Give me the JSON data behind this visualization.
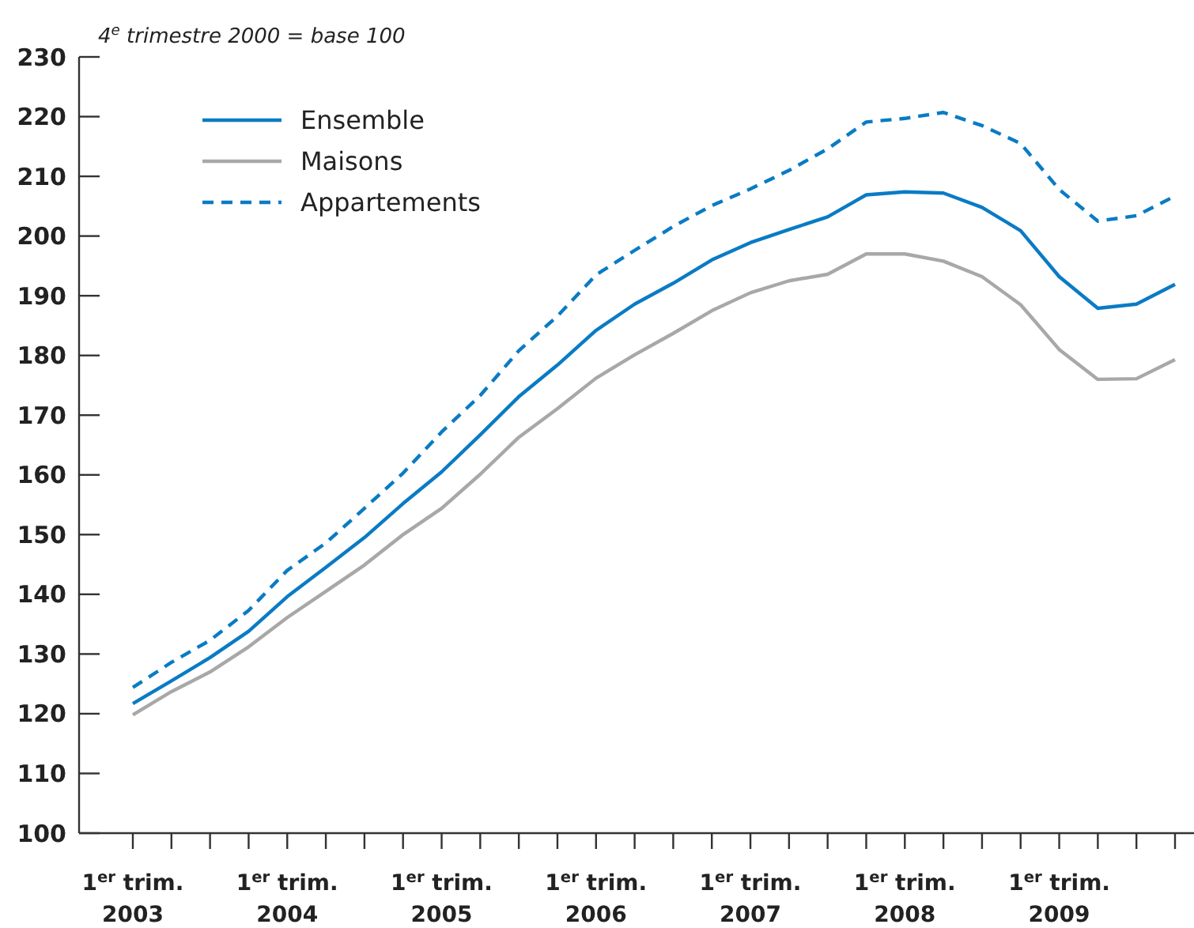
{
  "chart_data": {
    "type": "line",
    "subtitle": "4$^{e}$ trimestre 2000 = base 100",
    "categories": [
      "1$^{er}$ trim. 2003",
      null,
      null,
      null,
      "1$^{er}$ trim. 2004",
      null,
      null,
      null,
      "1$^{er}$ trim. 2005",
      null,
      null,
      null,
      "1$^{er}$ trim. 2006",
      null,
      null,
      null,
      "1$^{er}$ trim. 2007",
      null,
      null,
      null,
      "1$^{er}$ trim. 2008",
      null,
      null,
      null,
      "1$^{er}$ trim. 2009",
      null,
      null,
      null
    ],
    "series": [
      {
        "name": "Ensemble",
        "color": "#0a7bc4",
        "line_style": "solid",
        "values": [
          121.7,
          125.5,
          129.4,
          133.8,
          139.6,
          144.5,
          149.5,
          155.2,
          160.5,
          166.7,
          173.1,
          178.4,
          184.2,
          188.6,
          192.1,
          196.0,
          198.9,
          201.1,
          203.2,
          206.9,
          207.4,
          207.2,
          204.8,
          200.9,
          193.2,
          187.9,
          188.6,
          191.9
        ]
      },
      {
        "name": "Maisons",
        "color": "#a8a8a8",
        "line_style": "solid",
        "values": [
          119.8,
          123.7,
          127.0,
          131.2,
          136.1,
          140.5,
          144.9,
          150.0,
          154.4,
          160.1,
          166.3,
          171.1,
          176.2,
          180.1,
          183.7,
          187.5,
          190.5,
          192.5,
          193.6,
          197.0,
          197.0,
          195.8,
          193.2,
          188.5,
          181.0,
          176.0,
          176.1,
          179.3
        ]
      },
      {
        "name": "Appartements",
        "color": "#0a7bc4",
        "line_style": "dashed",
        "values": [
          124.4,
          128.6,
          132.3,
          137.3,
          144.0,
          148.6,
          154.4,
          160.3,
          167.2,
          173.3,
          180.8,
          186.6,
          193.5,
          197.6,
          201.6,
          205.1,
          207.9,
          211.0,
          214.6,
          219.1,
          219.7,
          220.7,
          218.5,
          215.5,
          207.8,
          202.5,
          203.4,
          206.7
        ]
      }
    ],
    "ylim": [
      100,
      230
    ],
    "yticks": [
      100,
      110,
      120,
      130,
      140,
      150,
      160,
      170,
      180,
      190,
      200,
      210,
      220,
      230
    ],
    "grid": false,
    "legend": "top left",
    "marker": "none"
  }
}
